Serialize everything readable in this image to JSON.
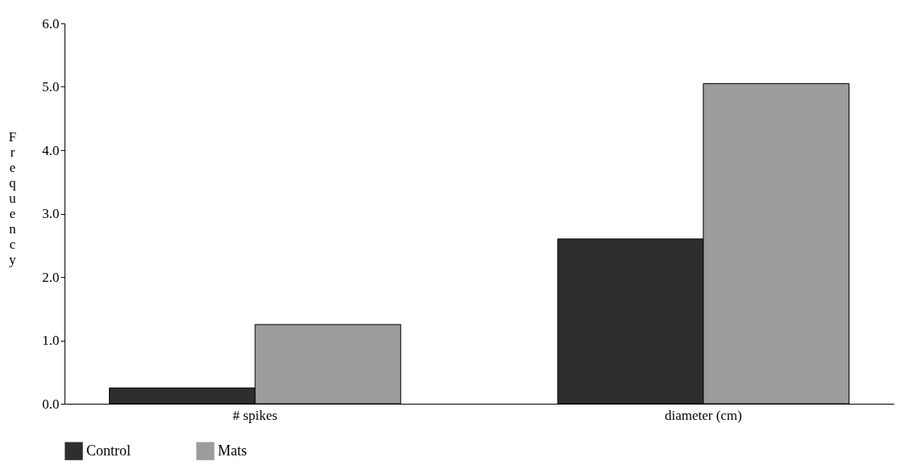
{
  "chart_data": {
    "type": "bar",
    "ylabel": "Frequency",
    "categories": [
      "# spikes",
      "diameter (cm)"
    ],
    "series": [
      {
        "name": "Control",
        "color": "#2e2e2e",
        "values": [
          0.25,
          2.6
        ]
      },
      {
        "name": "Mats",
        "color": "#9c9c9c",
        "values": [
          1.25,
          5.05
        ]
      }
    ],
    "ylim": [
      0,
      6
    ],
    "yticks": [
      {
        "value": 0,
        "label": "0.0"
      },
      {
        "value": 1,
        "label": "1.0"
      },
      {
        "value": 2,
        "label": "2.0"
      },
      {
        "value": 3,
        "label": "3.0"
      },
      {
        "value": 4,
        "label": "4.0"
      },
      {
        "value": 5,
        "label": "5.0"
      },
      {
        "value": 6,
        "label": "6.0"
      }
    ],
    "grid": false,
    "legend": "bottom"
  }
}
